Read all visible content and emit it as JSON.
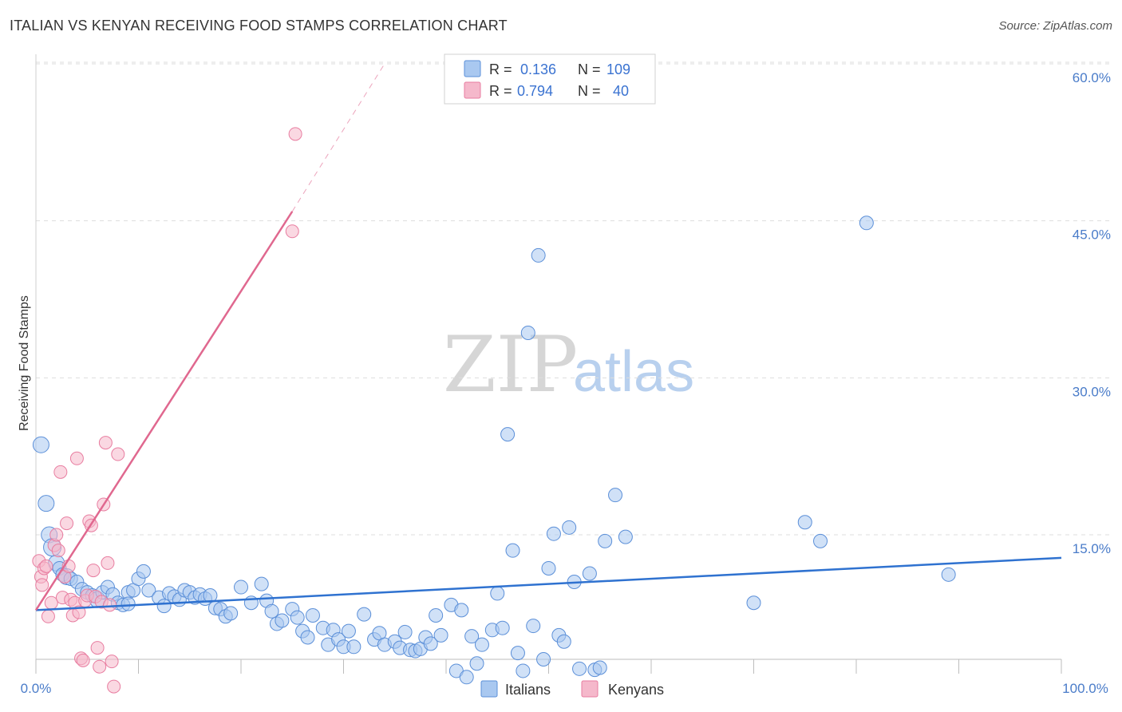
{
  "chart_data": {
    "type": "scatter",
    "title": "ITALIAN VS KENYAN RECEIVING FOOD STAMPS CORRELATION CHART",
    "source": "Source: ZipAtlas.com",
    "xlabel": "",
    "ylabel": "Receiving Food Stamps",
    "xlim": [
      0,
      100
    ],
    "ylim": [
      0,
      62
    ],
    "x_tick_labels": {
      "min": "0.0%",
      "max": "100.0%"
    },
    "y_ticks": [
      {
        "value": 15,
        "label": "15.0%"
      },
      {
        "value": 30,
        "label": "30.0%"
      },
      {
        "value": 45,
        "label": "45.0%"
      },
      {
        "value": 60,
        "label": "60.0%"
      }
    ],
    "grid": true,
    "watermark": {
      "zip": "ZIP",
      "atlas": "atlas"
    },
    "legend": [
      {
        "series": "Italians",
        "r_label": "R =",
        "r_value": "0.136",
        "n_label": "N =",
        "n_value": "109"
      },
      {
        "series": "Kenyans",
        "r_label": "R =",
        "r_value": "0.794",
        "n_label": "N =",
        "n_value": "40"
      }
    ],
    "series": [
      {
        "name": "Italians",
        "color": "#a9c8f0",
        "stroke": "#5b8fd8",
        "trend": {
          "x0": 0,
          "y0": 7.8,
          "x1": 100,
          "y1": 12.8,
          "color": "#2f72d0"
        },
        "points": [
          [
            0.5,
            23.6
          ],
          [
            1,
            18
          ],
          [
            1.3,
            15
          ],
          [
            1.6,
            13.8
          ],
          [
            2,
            12.3
          ],
          [
            2.3,
            11.8
          ],
          [
            2.6,
            11.2
          ],
          [
            3,
            11
          ],
          [
            3.4,
            10.8
          ],
          [
            4,
            10.5
          ],
          [
            4.5,
            9.8
          ],
          [
            5,
            9.5
          ],
          [
            5.5,
            9.2
          ],
          [
            6,
            8.8
          ],
          [
            6.5,
            9.5
          ],
          [
            7,
            10
          ],
          [
            7.5,
            9.3
          ],
          [
            8,
            8.5
          ],
          [
            8.5,
            8.3
          ],
          [
            9,
            9.5
          ],
          [
            9.5,
            9.7
          ],
          [
            10,
            10.8
          ],
          [
            10.5,
            11.5
          ],
          [
            11,
            9.7
          ],
          [
            12,
            9
          ],
          [
            12.5,
            8.2
          ],
          [
            13,
            9.4
          ],
          [
            13.5,
            9.1
          ],
          [
            14,
            8.8
          ],
          [
            14.5,
            9.7
          ],
          [
            15,
            9.5
          ],
          [
            15.5,
            9
          ],
          [
            16,
            9.3
          ],
          [
            16.5,
            8.9
          ],
          [
            17,
            9.2
          ],
          [
            17.5,
            8
          ],
          [
            18,
            7.9
          ],
          [
            18.5,
            7.2
          ],
          [
            19,
            7.5
          ],
          [
            20,
            10
          ],
          [
            21,
            8.5
          ],
          [
            22,
            10.3
          ],
          [
            22.5,
            8.7
          ],
          [
            23,
            7.7
          ],
          [
            23.5,
            6.5
          ],
          [
            24,
            6.8
          ],
          [
            25,
            7.9
          ],
          [
            25.5,
            7.1
          ],
          [
            26,
            5.8
          ],
          [
            26.5,
            5.2
          ],
          [
            27,
            7.3
          ],
          [
            28,
            6.1
          ],
          [
            28.5,
            4.5
          ],
          [
            29,
            5.9
          ],
          [
            29.5,
            5
          ],
          [
            30,
            4.3
          ],
          [
            30.5,
            5.8
          ],
          [
            31,
            4.3
          ],
          [
            32,
            7.4
          ],
          [
            33,
            5
          ],
          [
            33.5,
            5.6
          ],
          [
            34,
            4.5
          ],
          [
            35,
            4.8
          ],
          [
            35.5,
            4.2
          ],
          [
            36,
            5.7
          ],
          [
            36.5,
            4
          ],
          [
            37,
            3.9
          ],
          [
            37.5,
            4.1
          ],
          [
            38,
            5.2
          ],
          [
            38.5,
            4.6
          ],
          [
            39,
            7.3
          ],
          [
            39.5,
            5.4
          ],
          [
            40.5,
            8.3
          ],
          [
            41,
            2
          ],
          [
            41.5,
            7.8
          ],
          [
            42,
            1.4
          ],
          [
            42.5,
            5.3
          ],
          [
            43,
            2.7
          ],
          [
            43.5,
            4.5
          ],
          [
            44.5,
            5.9
          ],
          [
            45,
            9.4
          ],
          [
            45.5,
            6.1
          ],
          [
            46,
            24.6
          ],
          [
            46.5,
            13.5
          ],
          [
            47,
            3.7
          ],
          [
            47.5,
            2
          ],
          [
            48,
            34.3
          ],
          [
            48.5,
            6.3
          ],
          [
            49,
            41.7
          ],
          [
            49.5,
            3.1
          ],
          [
            50,
            11.8
          ],
          [
            50.5,
            15.1
          ],
          [
            51,
            5.4
          ],
          [
            51.5,
            4.8
          ],
          [
            52,
            15.7
          ],
          [
            52.5,
            10.5
          ],
          [
            53,
            2.2
          ],
          [
            54,
            11.3
          ],
          [
            54.5,
            2.1
          ],
          [
            55,
            2.3
          ],
          [
            55.5,
            14.4
          ],
          [
            56.5,
            18.8
          ],
          [
            57.5,
            14.8
          ],
          [
            70,
            8.5
          ],
          [
            75,
            16.2
          ],
          [
            76.5,
            14.4
          ],
          [
            81,
            44.8
          ],
          [
            89,
            11.2
          ],
          [
            9,
            8.4
          ]
        ]
      },
      {
        "name": "Kenyans",
        "color": "#f5b8cb",
        "stroke": "#e87da0",
        "trend": {
          "x0": 0,
          "y0": 7.8,
          "x1": 25,
          "y1": 45.9,
          "color": "#e0688f",
          "dash_to": {
            "x": 34,
            "y": 60
          }
        },
        "points": [
          [
            0.3,
            12.5
          ],
          [
            0.5,
            11
          ],
          [
            0.6,
            10.2
          ],
          [
            0.8,
            11.8
          ],
          [
            1,
            12
          ],
          [
            1.2,
            7.2
          ],
          [
            1.5,
            8.5
          ],
          [
            1.8,
            14
          ],
          [
            2,
            15
          ],
          [
            2.2,
            13.5
          ],
          [
            2.4,
            21
          ],
          [
            2.6,
            9
          ],
          [
            2.8,
            11
          ],
          [
            3,
            16.1
          ],
          [
            3.2,
            12
          ],
          [
            3.4,
            8.8
          ],
          [
            3.6,
            7.3
          ],
          [
            3.8,
            8.5
          ],
          [
            4,
            22.3
          ],
          [
            4.2,
            7.6
          ],
          [
            4.4,
            3.2
          ],
          [
            4.6,
            3
          ],
          [
            4.8,
            8.7
          ],
          [
            5,
            9.2
          ],
          [
            5.2,
            16.3
          ],
          [
            5.4,
            15.9
          ],
          [
            5.6,
            11.6
          ],
          [
            5.8,
            9.1
          ],
          [
            6,
            4.2
          ],
          [
            6.2,
            2.4
          ],
          [
            6.4,
            8.6
          ],
          [
            6.6,
            17.9
          ],
          [
            6.8,
            23.8
          ],
          [
            7,
            12.3
          ],
          [
            7.2,
            8.3
          ],
          [
            7.4,
            2.9
          ],
          [
            7.6,
            0.5
          ],
          [
            8,
            22.7
          ],
          [
            25,
            44
          ],
          [
            25.3,
            53.3
          ]
        ]
      }
    ]
  }
}
